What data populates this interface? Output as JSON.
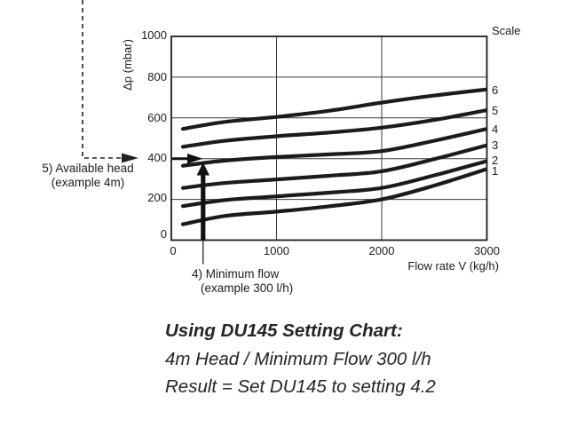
{
  "chart_data": {
    "type": "line",
    "title": "",
    "xlabel": "Flow rate V (kg/h)",
    "ylabel": "Δp (mbar)",
    "xlim": [
      0,
      3000
    ],
    "ylim": [
      0,
      1000
    ],
    "x_ticks": [
      0,
      1000,
      2000,
      3000
    ],
    "y_ticks": [
      0,
      200,
      400,
      600,
      800,
      1000
    ],
    "grid": true,
    "legend_title": "Scale",
    "legend_position": "right-outside",
    "x": [
      110,
      500,
      1000,
      1500,
      2000,
      2500,
      3000
    ],
    "series": [
      {
        "name": "6",
        "values": [
          546,
          580,
          605,
          635,
          675,
          710,
          740
        ]
      },
      {
        "name": "5",
        "values": [
          458,
          487,
          510,
          528,
          552,
          590,
          638
        ]
      },
      {
        "name": "4",
        "values": [
          365,
          390,
          408,
          421,
          437,
          488,
          546
        ]
      },
      {
        "name": "3",
        "values": [
          256,
          280,
          298,
          316,
          338,
          398,
          466
        ]
      },
      {
        "name": "2",
        "values": [
          167,
          196,
          215,
          233,
          256,
          318,
          388
        ]
      },
      {
        "name": "1",
        "values": [
          78,
          118,
          140,
          166,
          200,
          268,
          349
        ]
      }
    ],
    "highlight": {
      "available_head_mbar": 400,
      "available_head_m": 4,
      "minimum_flow_lh": 300,
      "result_setting": 4.2
    }
  },
  "annotations": {
    "available_head": {
      "line1": "5) Available head",
      "line2": "(example 4m)"
    },
    "minimum_flow": {
      "line1": "4) Minimum flow",
      "line2": "(example 300 l/h)"
    }
  },
  "caption": {
    "line1": "Using DU145 Setting Chart:",
    "line2": "4m Head / Minimum Flow 300 l/h",
    "line3": "Result = Set DU145 to setting 4.2"
  }
}
